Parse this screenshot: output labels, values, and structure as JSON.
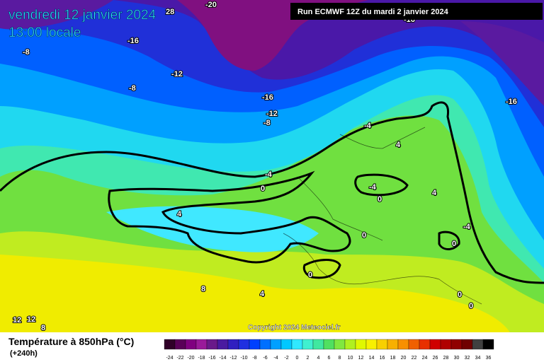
{
  "header": {
    "date": "vendredi 12 janvier 2024",
    "time": "13:00 locale",
    "run": "Run ECMWF 12Z du mardi 2 janvier 2024",
    "copyright": "Copyright 2024 Meteociel.fr"
  },
  "legend": {
    "title": "Température à 850hPa (°C)",
    "lead": "(+240h)",
    "ticks": [
      -24,
      -22,
      -20,
      -18,
      -16,
      -14,
      -12,
      -10,
      -8,
      -6,
      -4,
      -2,
      0,
      2,
      4,
      6,
      8,
      10,
      12,
      14,
      16,
      18,
      20,
      22,
      24,
      26,
      28,
      30,
      32,
      34,
      36
    ],
    "colors": [
      "#300028",
      "#5a0058",
      "#800080",
      "#9a1a9a",
      "#6a1a8a",
      "#4a1aa0",
      "#3020c0",
      "#2030e0",
      "#0040ff",
      "#0070ff",
      "#00a0ff",
      "#00c8ff",
      "#30e8ff",
      "#40f0d0",
      "#40e8a0",
      "#50e060",
      "#80e840",
      "#b0f020",
      "#e0f800",
      "#f8f000",
      "#f8d000",
      "#f8b000",
      "#f89000",
      "#f06000",
      "#e83000",
      "#d00000",
      "#b00000",
      "#900000",
      "#700000",
      "#404040",
      "#000000"
    ]
  },
  "contour_labels": [
    -20,
    -16,
    -16,
    -16,
    -16,
    -12,
    -12,
    -8,
    -8,
    -8,
    -4,
    -4,
    -4,
    -4,
    0,
    0,
    0,
    0,
    0,
    0,
    0,
    4,
    4,
    4,
    4,
    8,
    8,
    12,
    12,
    28
  ]
}
